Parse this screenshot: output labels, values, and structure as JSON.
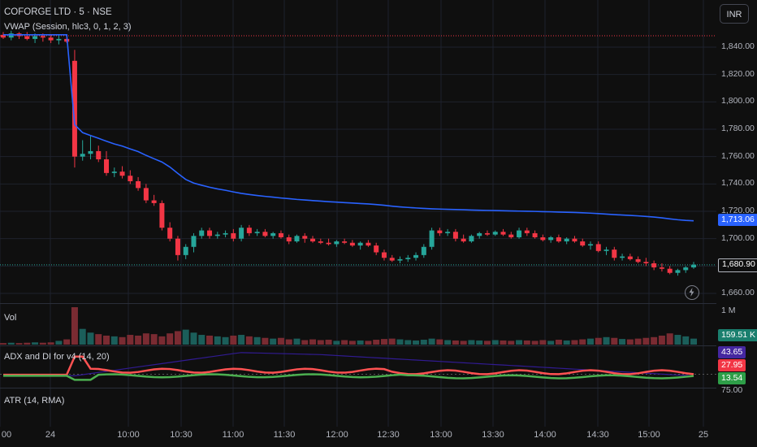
{
  "legend": {
    "symbol": "COFORGE LTD · 5 · NSE",
    "vwap": "VWAP (Session, hlc3, 0, 1, 2, 3)",
    "vol": "Vol",
    "adx": "ADX and DI for v4 (14, 20)",
    "atr": "ATR (14, RMA)"
  },
  "currency_button": "INR",
  "price_axis": {
    "ticks": [
      "1,840.00",
      "1,820.00",
      "1,800.00",
      "1,780.00",
      "1,760.00",
      "1,740.00",
      "1,720.00",
      "1,700.00",
      "1,660.00"
    ]
  },
  "badges": {
    "vwap": "1,713.06",
    "price": "1,680.90",
    "volume": "159.51 K",
    "adx_blue": "43.65",
    "adx_red": "27.95",
    "adx_green": "13.54"
  },
  "vol_axis_label": "1 M",
  "adx_axis_label": "75.00",
  "time_axis": [
    "00",
    "24",
    "10:00",
    "10:30",
    "11:00",
    "11:30",
    "12:00",
    "12:30",
    "13:00",
    "13:30",
    "14:00",
    "14:30",
    "15:00",
    "25"
  ],
  "colors": {
    "up": "#26a69a",
    "down": "#f23645",
    "vwap": "#2962ff",
    "di_plus": "#4caf50",
    "di_minus": "#ff5252",
    "adx_line": "#311b92",
    "vol_up": "#1b5e5a",
    "vol_down": "#7a2b32"
  },
  "icons": {
    "bolt": "lightning-bolt-icon"
  },
  "chart_data": {
    "type": "candlestick",
    "ylim": [
      1650,
      1855
    ],
    "last_price": 1680.9,
    "vwap_last": 1713.06,
    "ohlc": [
      [
        1849,
        1851,
        1846,
        1847
      ],
      [
        1847,
        1852,
        1845,
        1850
      ],
      [
        1850,
        1851,
        1846,
        1848
      ],
      [
        1848,
        1851,
        1845,
        1846
      ],
      [
        1846,
        1850,
        1843,
        1848
      ],
      [
        1848,
        1850,
        1844,
        1847
      ],
      [
        1847,
        1849,
        1843,
        1845
      ],
      [
        1845,
        1849,
        1842,
        1846
      ],
      [
        1846,
        1848,
        1843,
        1844
      ],
      [
        1830,
        1838,
        1752,
        1760
      ],
      [
        1760,
        1772,
        1757,
        1762
      ],
      [
        1762,
        1775,
        1758,
        1764
      ],
      [
        1764,
        1768,
        1756,
        1758
      ],
      [
        1758,
        1764,
        1746,
        1748
      ],
      [
        1748,
        1752,
        1745,
        1749
      ],
      [
        1749,
        1753,
        1744,
        1746
      ],
      [
        1746,
        1750,
        1740,
        1742
      ],
      [
        1742,
        1745,
        1735,
        1737
      ],
      [
        1737,
        1740,
        1726,
        1728
      ],
      [
        1728,
        1732,
        1724,
        1726
      ],
      [
        1726,
        1728,
        1706,
        1708
      ],
      [
        1708,
        1712,
        1698,
        1700
      ],
      [
        1700,
        1702,
        1684,
        1688
      ],
      [
        1688,
        1696,
        1685,
        1694
      ],
      [
        1694,
        1704,
        1690,
        1702
      ],
      [
        1702,
        1708,
        1700,
        1706
      ],
      [
        1706,
        1708,
        1700,
        1702
      ],
      [
        1702,
        1705,
        1700,
        1703
      ],
      [
        1703,
        1706,
        1701,
        1704
      ],
      [
        1704,
        1707,
        1698,
        1700
      ],
      [
        1700,
        1710,
        1698,
        1708
      ],
      [
        1708,
        1710,
        1702,
        1704
      ],
      [
        1704,
        1707,
        1702,
        1705
      ],
      [
        1705,
        1707,
        1701,
        1702
      ],
      [
        1702,
        1705,
        1700,
        1704
      ],
      [
        1704,
        1706,
        1700,
        1701
      ],
      [
        1701,
        1703,
        1696,
        1698
      ],
      [
        1698,
        1703,
        1697,
        1702
      ],
      [
        1702,
        1704,
        1697,
        1700
      ],
      [
        1700,
        1702,
        1697,
        1698
      ],
      [
        1698,
        1700,
        1696,
        1697
      ],
      [
        1697,
        1700,
        1695,
        1696
      ],
      [
        1696,
        1699,
        1694,
        1698
      ],
      [
        1698,
        1700,
        1696,
        1697
      ],
      [
        1697,
        1699,
        1694,
        1695
      ],
      [
        1695,
        1698,
        1692,
        1697
      ],
      [
        1697,
        1699,
        1694,
        1695
      ],
      [
        1695,
        1697,
        1688,
        1690
      ],
      [
        1690,
        1692,
        1684,
        1686
      ],
      [
        1686,
        1688,
        1683,
        1684
      ],
      [
        1684,
        1687,
        1682,
        1685
      ],
      [
        1685,
        1688,
        1683,
        1686
      ],
      [
        1686,
        1690,
        1684,
        1688
      ],
      [
        1688,
        1696,
        1686,
        1694
      ],
      [
        1694,
        1708,
        1692,
        1706
      ],
      [
        1706,
        1708,
        1702,
        1704
      ],
      [
        1704,
        1707,
        1702,
        1705
      ],
      [
        1705,
        1707,
        1698,
        1700
      ],
      [
        1700,
        1703,
        1697,
        1698
      ],
      [
        1698,
        1703,
        1697,
        1702
      ],
      [
        1702,
        1705,
        1700,
        1704
      ],
      [
        1704,
        1706,
        1702,
        1703
      ],
      [
        1703,
        1706,
        1702,
        1705
      ],
      [
        1705,
        1707,
        1702,
        1703
      ],
      [
        1703,
        1705,
        1700,
        1701
      ],
      [
        1701,
        1708,
        1700,
        1706
      ],
      [
        1706,
        1708,
        1702,
        1704
      ],
      [
        1704,
        1706,
        1700,
        1701
      ],
      [
        1701,
        1703,
        1698,
        1699
      ],
      [
        1699,
        1702,
        1697,
        1701
      ],
      [
        1701,
        1703,
        1697,
        1698
      ],
      [
        1698,
        1701,
        1696,
        1700
      ],
      [
        1700,
        1702,
        1697,
        1698
      ],
      [
        1698,
        1700,
        1694,
        1695
      ],
      [
        1695,
        1698,
        1692,
        1696
      ],
      [
        1696,
        1698,
        1690,
        1691
      ],
      [
        1691,
        1694,
        1688,
        1692
      ],
      [
        1692,
        1694,
        1684,
        1686
      ],
      [
        1686,
        1689,
        1684,
        1687
      ],
      [
        1687,
        1689,
        1684,
        1685
      ],
      [
        1685,
        1687,
        1682,
        1683
      ],
      [
        1683,
        1686,
        1680,
        1682
      ],
      [
        1682,
        1684,
        1677,
        1679
      ],
      [
        1679,
        1682,
        1676,
        1678
      ],
      [
        1678,
        1680,
        1674,
        1675
      ],
      [
        1675,
        1678,
        1673,
        1677
      ],
      [
        1677,
        1680,
        1675,
        1679
      ],
      [
        1679,
        1683,
        1678,
        1681
      ]
    ],
    "volume_max": 1000000,
    "volume_ratio": [
      0.04,
      0.05,
      0.04,
      0.05,
      0.06,
      0.05,
      0.06,
      0.1,
      0.14,
      1.0,
      0.42,
      0.32,
      0.28,
      0.24,
      0.22,
      0.2,
      0.26,
      0.24,
      0.3,
      0.28,
      0.22,
      0.3,
      0.36,
      0.4,
      0.32,
      0.26,
      0.24,
      0.22,
      0.2,
      0.24,
      0.26,
      0.22,
      0.2,
      0.18,
      0.16,
      0.18,
      0.14,
      0.16,
      0.12,
      0.14,
      0.12,
      0.13,
      0.1,
      0.12,
      0.1,
      0.11,
      0.1,
      0.13,
      0.15,
      0.16,
      0.14,
      0.12,
      0.11,
      0.13,
      0.16,
      0.14,
      0.12,
      0.11,
      0.1,
      0.12,
      0.11,
      0.1,
      0.12,
      0.11,
      0.1,
      0.12,
      0.11,
      0.1,
      0.12,
      0.1,
      0.13,
      0.11,
      0.12,
      0.14,
      0.16,
      0.18,
      0.2,
      0.18,
      0.15,
      0.14,
      0.16,
      0.18,
      0.2,
      0.24,
      0.3,
      0.26,
      0.22,
      0.16
    ]
  }
}
